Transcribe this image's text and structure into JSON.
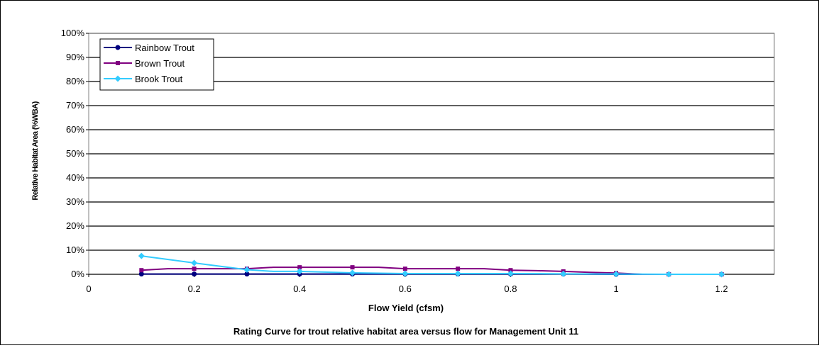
{
  "chart_data": {
    "type": "line",
    "title": "Rating Curve for trout relative habitat area versus flow for Management Unit 11",
    "xlabel": "Flow Yield (cfsm)",
    "ylabel": "Relative Habitat Area (%WBA)",
    "xlim": [
      0,
      1.3
    ],
    "ylim": [
      0,
      100
    ],
    "x_ticks": [
      "0",
      "0.2",
      "0.4",
      "0.6",
      "0.8",
      "1",
      "1.2"
    ],
    "x_tick_values": [
      0,
      0.2,
      0.4,
      0.6,
      0.8,
      1.0,
      1.2
    ],
    "y_ticks": [
      "0%",
      "10%",
      "20%",
      "30%",
      "40%",
      "50%",
      "60%",
      "70%",
      "80%",
      "90%",
      "100%"
    ],
    "y_tick_values": [
      0,
      10,
      20,
      30,
      40,
      50,
      60,
      70,
      80,
      90,
      100
    ],
    "grid": "horizontal",
    "legend_position": "top-left",
    "series": [
      {
        "name": "Rainbow Trout",
        "color": "#000080",
        "marker": "circle",
        "x": [
          0.1,
          0.2,
          0.3,
          0.4,
          0.5,
          0.6,
          0.7,
          0.8,
          0.9,
          1.0,
          1.1,
          1.2
        ],
        "y": [
          0.1,
          0.1,
          0.1,
          0.1,
          0.1,
          0.1,
          0.1,
          0.1,
          0.1,
          0.0,
          0.0,
          0.0
        ]
      },
      {
        "name": "Brown Trout",
        "color": "#800080",
        "marker": "square",
        "x": [
          0.1,
          0.15,
          0.2,
          0.25,
          0.3,
          0.35,
          0.4,
          0.45,
          0.5,
          0.55,
          0.6,
          0.65,
          0.7,
          0.75,
          0.8,
          0.85,
          0.9,
          0.95,
          1.0,
          1.05,
          1.1,
          1.15,
          1.2
        ],
        "y": [
          1.7,
          2.3,
          2.3,
          2.3,
          2.3,
          2.9,
          2.9,
          2.9,
          2.9,
          2.9,
          2.3,
          2.3,
          2.3,
          2.3,
          1.7,
          1.5,
          1.2,
          0.8,
          0.5,
          0.0,
          0.0,
          0.0,
          0.0
        ]
      },
      {
        "name": "Brook Trout",
        "color": "#33CCFF",
        "marker": "diamond",
        "x": [
          0.1,
          0.2,
          0.3,
          0.35,
          0.4,
          0.5,
          0.6,
          0.7,
          0.8,
          0.9,
          1.0,
          1.1,
          1.2
        ],
        "y": [
          7.6,
          4.7,
          1.9,
          1.2,
          1.2,
          0.6,
          0.3,
          0.3,
          0.3,
          0.2,
          0.1,
          0.0,
          0.0
        ]
      }
    ]
  }
}
